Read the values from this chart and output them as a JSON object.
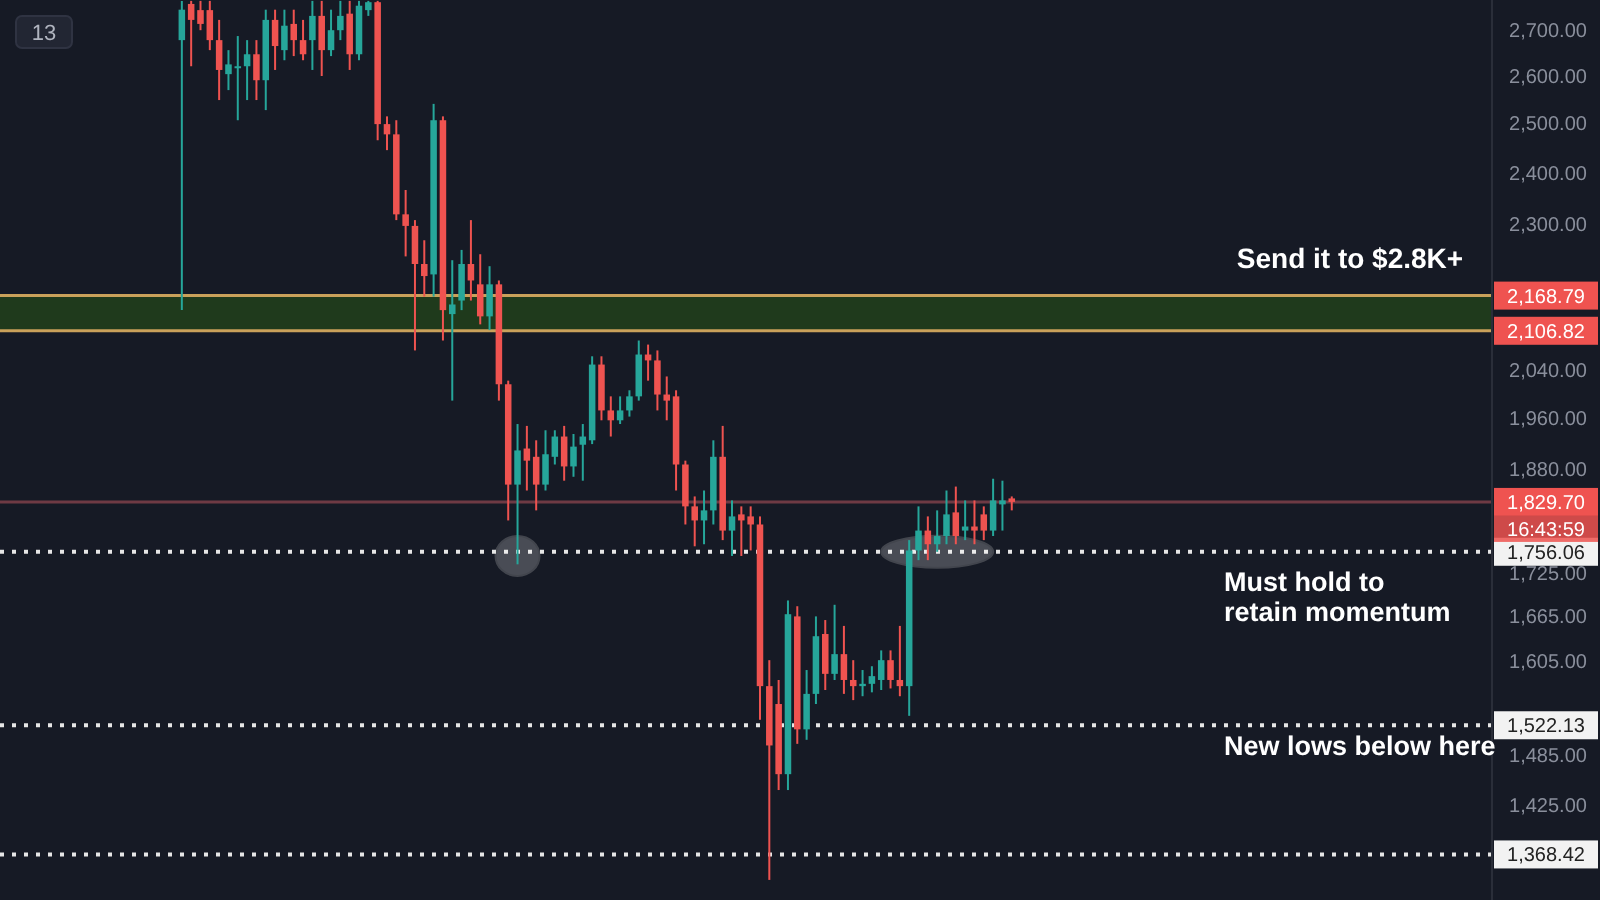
{
  "chart_data": {
    "type": "candlestick",
    "log": "y",
    "categories": [
      null,
      null,
      null,
      null,
      null,
      null,
      null,
      null,
      null,
      null,
      null,
      null,
      null,
      null,
      null,
      null,
      null,
      null,
      null,
      null,
      null,
      null,
      null,
      null,
      null,
      null,
      null,
      null,
      null,
      null,
      null,
      null,
      null,
      null,
      null,
      null,
      null,
      null,
      null,
      null,
      null,
      null,
      null,
      null,
      null,
      null,
      null,
      null,
      null,
      null,
      null,
      null,
      null,
      null,
      null,
      null,
      null,
      null,
      null,
      null,
      null,
      null,
      null,
      null,
      null,
      null,
      null,
      null,
      null,
      null,
      null,
      null,
      null,
      null,
      null,
      null,
      null,
      null,
      null,
      null,
      null,
      null,
      null,
      null,
      null,
      null,
      null,
      null,
      null,
      null,
      null,
      null,
      null,
      null,
      null,
      null,
      null,
      null,
      null,
      null,
      null,
      null,
      null,
      null,
      null,
      null,
      null,
      null,
      null,
      null,
      null,
      null,
      null,
      null,
      null,
      null,
      null,
      null,
      null,
      null,
      null,
      null,
      null,
      null,
      null,
      null,
      null,
      null,
      null,
      null,
      null,
      null,
      null,
      null,
      null,
      null,
      null,
      null,
      null,
      null,
      null,
      null,
      null,
      null,
      null,
      null,
      null,
      null,
      null,
      null,
      null,
      null,
      null,
      null,
      null,
      null,
      null,
      null,
      null,
      null
    ],
    "ohlc": [
      null,
      null,
      null,
      null,
      null,
      null,
      null,
      null,
      null,
      null,
      null,
      null,
      null,
      null,
      null,
      null,
      null,
      null,
      null,
      [
        2677,
        2765,
        2143,
        2745
      ],
      [
        2758,
        2765,
        2620,
        2722
      ],
      [
        2744,
        2765,
        2699,
        2713
      ],
      [
        2744,
        2765,
        2655,
        2677
      ],
      [
        2677,
        2722,
        2548,
        2612
      ],
      [
        2603,
        2655,
        2569,
        2624
      ],
      [
        2616,
        2686,
        2506,
        2620
      ],
      [
        2620,
        2677,
        2548,
        2646
      ],
      [
        2646,
        2677,
        2548,
        2590
      ],
      [
        2590,
        2745,
        2527,
        2722
      ],
      [
        2722,
        2745,
        2612,
        2664
      ],
      [
        2655,
        2745,
        2633,
        2709
      ],
      [
        2713,
        2745,
        2642,
        2677
      ],
      [
        2677,
        2722,
        2633,
        2646
      ],
      [
        2677,
        2765,
        2612,
        2731
      ],
      [
        2731,
        2765,
        2599,
        2655
      ],
      [
        2655,
        2745,
        2642,
        2699
      ],
      [
        2699,
        2765,
        2677,
        2731
      ],
      [
        2736,
        2765,
        2612,
        2646
      ],
      [
        2646,
        2765,
        2633,
        2754
      ],
      [
        2744,
        2765,
        2731,
        2762
      ],
      [
        2762,
        2765,
        2465,
        2498
      ],
      [
        2498,
        2514,
        2445,
        2477
      ],
      [
        2477,
        2506,
        2308,
        2319
      ],
      [
        2319,
        2366,
        2240,
        2297
      ],
      [
        2297,
        2308,
        2073,
        2226
      ],
      [
        2226,
        2270,
        2167,
        2204
      ],
      [
        2207,
        2540,
        2167,
        2506
      ],
      [
        2506,
        2514,
        2090,
        2143
      ],
      [
        2136,
        2233,
        1989,
        2153
      ],
      [
        2160,
        2252,
        2143,
        2226
      ],
      [
        2226,
        2308,
        2160,
        2196
      ],
      [
        2189,
        2244,
        2118,
        2132
      ],
      [
        2132,
        2222,
        2108,
        2189
      ],
      [
        2189,
        2196,
        1989,
        2016
      ],
      [
        2016,
        2022,
        1802,
        1856
      ],
      [
        1856,
        1951,
        1738,
        1909
      ],
      [
        1912,
        1948,
        1847,
        1893
      ],
      [
        1899,
        1925,
        1817,
        1856
      ],
      [
        1856,
        1941,
        1847,
        1903
      ],
      [
        1899,
        1941,
        1887,
        1931
      ],
      [
        1931,
        1948,
        1862,
        1884
      ],
      [
        1884,
        1935,
        1868,
        1915
      ],
      [
        1918,
        1951,
        1862,
        1931
      ],
      [
        1925,
        2063,
        1919,
        2049
      ],
      [
        2049,
        2063,
        1957,
        1973
      ],
      [
        1973,
        1996,
        1931,
        1957
      ],
      [
        1957,
        1996,
        1951,
        1973
      ],
      [
        1973,
        2006,
        1963,
        1996
      ],
      [
        1996,
        2090,
        1989,
        2066
      ],
      [
        2066,
        2083,
        2022,
        2056
      ],
      [
        2056,
        2073,
        1973,
        1999
      ],
      [
        1999,
        2029,
        1957,
        1989
      ],
      [
        1996,
        2006,
        1847,
        1887
      ],
      [
        1887,
        1893,
        1796,
        1823
      ],
      [
        1823,
        1838,
        1764,
        1802
      ],
      [
        1802,
        1847,
        1767,
        1817
      ],
      [
        1817,
        1925,
        1796,
        1899
      ],
      [
        1899,
        1948,
        1773,
        1787
      ],
      [
        1787,
        1832,
        1750,
        1808
      ],
      [
        1811,
        1823,
        1750,
        1802
      ],
      [
        1808,
        1823,
        1758,
        1796
      ],
      [
        1796,
        1808,
        1529,
        1572
      ],
      [
        1572,
        1606,
        1340,
        1497
      ],
      [
        1549,
        1580,
        1443,
        1462
      ],
      [
        1462,
        1687,
        1443,
        1668
      ],
      [
        1665,
        1679,
        1499,
        1517
      ],
      [
        1517,
        1593,
        1504,
        1562
      ],
      [
        1562,
        1665,
        1549,
        1638
      ],
      [
        1641,
        1660,
        1567,
        1588
      ],
      [
        1588,
        1681,
        1580,
        1614
      ],
      [
        1614,
        1652,
        1562,
        1580
      ],
      [
        1580,
        1606,
        1554,
        1572
      ],
      [
        1572,
        1593,
        1559,
        1575
      ],
      [
        1575,
        1598,
        1564,
        1585
      ],
      [
        1580,
        1619,
        1567,
        1606
      ],
      [
        1606,
        1619,
        1569,
        1580
      ],
      [
        1580,
        1652,
        1559,
        1572
      ],
      [
        1572,
        1773,
        1534,
        1758
      ],
      [
        1758,
        1823,
        1744,
        1787
      ],
      [
        1787,
        1808,
        1744,
        1767
      ],
      [
        1767,
        1817,
        1756,
        1779
      ],
      [
        1779,
        1847,
        1767,
        1811
      ],
      [
        1814,
        1853,
        1767,
        1779
      ],
      [
        1787,
        1832,
        1773,
        1793
      ],
      [
        1793,
        1832,
        1767,
        1787
      ],
      [
        1811,
        1823,
        1773,
        1787
      ],
      [
        1787,
        1865,
        1779,
        1832
      ],
      [
        1826,
        1862,
        1787,
        1832
      ],
      [
        1835,
        1838,
        1817,
        1829.7
      ],
      null,
      null,
      null,
      null,
      null,
      null,
      null,
      null,
      null,
      null,
      null,
      null,
      null,
      null,
      null,
      null,
      null,
      null,
      null,
      null,
      null,
      null,
      null,
      null,
      null,
      null,
      null,
      null,
      null,
      null,
      null,
      null,
      null,
      null,
      null,
      null,
      null,
      null,
      null,
      null,
      null,
      null,
      null,
      null,
      null,
      null,
      null,
      null,
      null,
      null,
      null
    ],
    "ylim": [
      1318,
      2767
    ],
    "yticks": [
      {
        "value": 2700,
        "label": "2,700.00"
      },
      {
        "value": 2600,
        "label": "2,600.00"
      },
      {
        "value": 2500,
        "label": "2,500.00"
      },
      {
        "value": 2400,
        "label": "2,400.00"
      },
      {
        "value": 2300,
        "label": "2,300.00"
      },
      {
        "value": 2040,
        "label": "2,040.00"
      },
      {
        "value": 1960,
        "label": "1,960.00"
      },
      {
        "value": 1880,
        "label": "1,880.00"
      },
      {
        "value": 1725,
        "label": "1,725.00"
      },
      {
        "value": 1665,
        "label": "1,665.00"
      },
      {
        "value": 1605,
        "label": "1,605.00"
      },
      {
        "value": 1485,
        "label": "1,485.00"
      },
      {
        "value": 1425,
        "label": "1,425.00"
      }
    ],
    "tick_labels": "y",
    "bands": [
      {
        "axis": "y",
        "from": 2106.82,
        "to": 2168.79,
        "label": "Send it to $2.8K+",
        "color": "#1f3a1c"
      }
    ],
    "ref_lines": [
      {
        "axis": "y",
        "value": 2168.79,
        "label": "2,168.79",
        "color": "#c9a15a",
        "line_style": "solid"
      },
      {
        "axis": "y",
        "value": 2106.82,
        "label": "2,106.82",
        "color": "#c9a15a",
        "line_style": "solid"
      },
      {
        "axis": "y",
        "value": 1829.7,
        "label": "1,829.70",
        "color": "#6e3a44",
        "line_style": "solid"
      },
      {
        "axis": "y",
        "value": 1756.06,
        "label": "1,756.06",
        "color": "#e6e6e6",
        "line_style": "dotted"
      },
      {
        "axis": "y",
        "value": 1522.13,
        "label": "1,522.13",
        "color": "#e6e6e6",
        "line_style": "dotted"
      },
      {
        "axis": "y",
        "value": 1368.42,
        "label": "1,368.42",
        "color": "#e6e6e6",
        "line_style": "dotted"
      }
    ],
    "annotations": [
      "Must hold to retain momentum",
      "New lows below here",
      "16:43:59",
      "13"
    ]
  }
}
